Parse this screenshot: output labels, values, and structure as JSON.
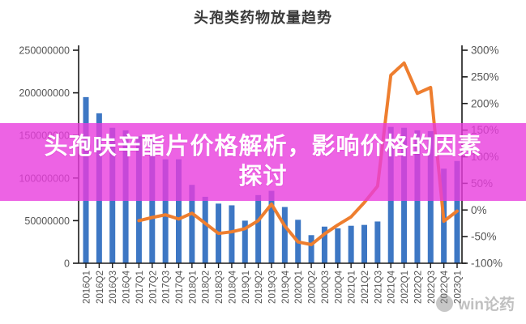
{
  "page": {
    "title": "头孢类药物放量趋势"
  },
  "banner": {
    "line1": "头孢呋辛酯片价格解析，影响价格的因素",
    "line2": "探讨",
    "background_color": "#E93CDD",
    "text_color": "#FFFFFF"
  },
  "watermark": {
    "icon": "circle-logo",
    "text": "win论药"
  },
  "chart_data": {
    "type": "bar",
    "subtype": "combo-bar-line-dual-axis",
    "title": "头孢类药物放量趋势",
    "xlabel": "",
    "ylabel": "",
    "grid": false,
    "legend_position": "none",
    "categories": [
      "2016Q1",
      "2016Q2",
      "2016Q3",
      "2016Q4",
      "2017Q1",
      "2017Q2",
      "2017Q3",
      "2017Q4",
      "2018Q1",
      "2018Q2",
      "2018Q3",
      "2018Q4",
      "2019Q1",
      "2019Q2",
      "2019Q3",
      "2019Q4",
      "2020Q1",
      "2020Q2",
      "2020Q3",
      "2020Q4",
      "2021Q1",
      "2021Q2",
      "2021Q3",
      "2021Q4",
      "2022Q1",
      "2022Q2",
      "2022Q3",
      "2022Q4",
      "2023Q1"
    ],
    "series": [
      {
        "name": "bar-series",
        "type": "bar",
        "axis": "left",
        "color": "#3D77C4",
        "values": [
          195000000,
          176000000,
          159000000,
          156000000,
          149000000,
          147000000,
          122000000,
          122000000,
          92000000,
          78000000,
          70000000,
          68000000,
          50000000,
          80000000,
          85000000,
          66000000,
          51000000,
          33000000,
          43000000,
          41000000,
          44000000,
          45000000,
          49000000,
          160000000,
          159000000,
          156000000,
          155000000,
          111000000,
          120000000
        ]
      },
      {
        "name": "line-series",
        "type": "line",
        "axis": "right",
        "color": "#EE7E2F",
        "start_category": "2017Q1",
        "start_index": 4,
        "values": [
          -20,
          -14,
          -9,
          -17,
          -6,
          -25,
          -44,
          -41,
          -35,
          -20,
          11,
          -30,
          -60,
          -65,
          -45,
          -28,
          -13,
          14,
          45,
          253,
          276,
          219,
          230,
          -21,
          -2
        ]
      }
    ],
    "left_axis": {
      "min": 0,
      "max": 250000000,
      "tick_labels": [
        "0",
        "50000000",
        "100000000",
        "150000000",
        "200000000",
        "250000000"
      ],
      "tick_values": [
        0,
        50000000,
        100000000,
        150000000,
        200000000,
        250000000
      ]
    },
    "right_axis": {
      "min": -100,
      "max": 300,
      "tick_labels": [
        "-100%",
        "-50%",
        "0%",
        "50%",
        "100%",
        "150%",
        "200%",
        "250%",
        "300%"
      ],
      "tick_values": [
        -100,
        -50,
        0,
        50,
        100,
        150,
        200,
        250,
        300
      ]
    },
    "axis_color": "#1a1a1a",
    "tick_label_color": "#555555"
  }
}
